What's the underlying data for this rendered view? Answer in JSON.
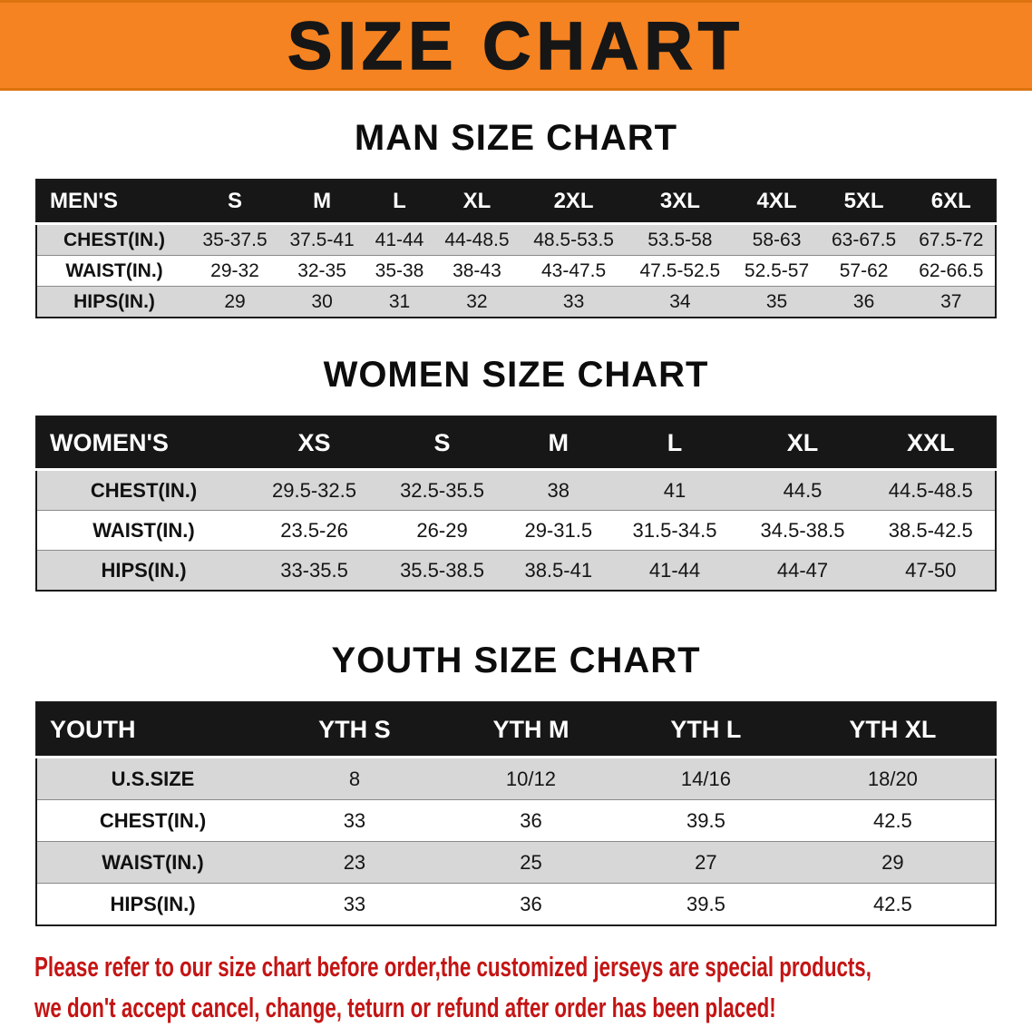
{
  "banner": {
    "title": "SIZE CHART"
  },
  "colors": {
    "banner_orange": "#f58321",
    "table_header_black": "#171717",
    "row_gray": "#d7d7d7",
    "disclaimer_red": "#c41414"
  },
  "sections": [
    {
      "heading": "MAN SIZE CHART",
      "table": {
        "header": [
          "MEN'S",
          "S",
          "M",
          "L",
          "XL",
          "2XL",
          "3XL",
          "4XL",
          "5XL",
          "6XL"
        ],
        "rows": [
          {
            "label": "CHEST(IN.)",
            "values": [
              "35-37.5",
              "37.5-41",
              "41-44",
              "44-48.5",
              "48.5-53.5",
              "53.5-58",
              "58-63",
              "63-67.5",
              "67.5-72"
            ]
          },
          {
            "label": "WAIST(IN.)",
            "values": [
              "29-32",
              "32-35",
              "35-38",
              "38-43",
              "43-47.5",
              "47.5-52.5",
              "52.5-57",
              "57-62",
              "62-66.5"
            ]
          },
          {
            "label": "HIPS(IN.)",
            "values": [
              "29",
              "30",
              "31",
              "32",
              "33",
              "34",
              "35",
              "36",
              "37"
            ]
          }
        ]
      }
    },
    {
      "heading": "WOMEN SIZE CHART",
      "table": {
        "header": [
          "WOMEN'S",
          "XS",
          "S",
          "M",
          "L",
          "XL",
          "XXL"
        ],
        "rows": [
          {
            "label": "CHEST(IN.)",
            "values": [
              "29.5-32.5",
              "32.5-35.5",
              "38",
              "41",
              "44.5",
              "44.5-48.5"
            ]
          },
          {
            "label": "WAIST(IN.)",
            "values": [
              "23.5-26",
              "26-29",
              "29-31.5",
              "31.5-34.5",
              "34.5-38.5",
              "38.5-42.5"
            ]
          },
          {
            "label": "HIPS(IN.)",
            "values": [
              "33-35.5",
              "35.5-38.5",
              "38.5-41",
              "41-44",
              "44-47",
              "47-50"
            ]
          }
        ]
      }
    },
    {
      "heading": "YOUTH SIZE CHART",
      "table": {
        "header": [
          "YOUTH",
          "YTH S",
          "YTH M",
          "YTH L",
          "YTH XL"
        ],
        "rows": [
          {
            "label": "U.S.SIZE",
            "values": [
              "8",
              "10/12",
              "14/16",
              "18/20"
            ]
          },
          {
            "label": "CHEST(IN.)",
            "values": [
              "33",
              "36",
              "39.5",
              "42.5"
            ]
          },
          {
            "label": "WAIST(IN.)",
            "values": [
              "23",
              "25",
              "27",
              "29"
            ]
          },
          {
            "label": "HIPS(IN.)",
            "values": [
              "33",
              "36",
              "39.5",
              "42.5"
            ]
          }
        ]
      }
    }
  ],
  "disclaimer": {
    "line1": "Please refer to our size chart before order,the customized jerseys are special products,",
    "line2": "we don't accept cancel, change, teturn or refund after order has been placed!"
  }
}
